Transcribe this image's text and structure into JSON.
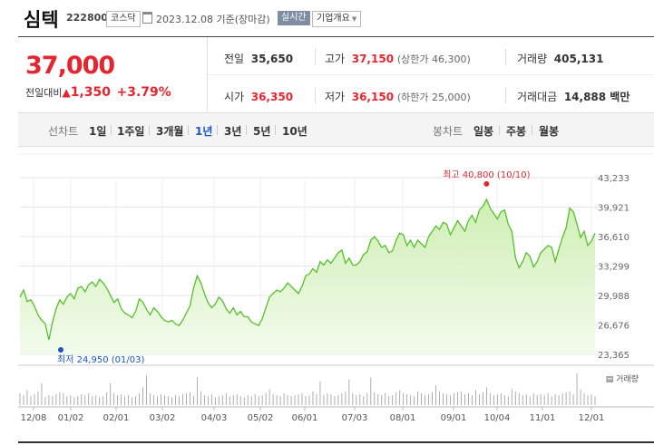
{
  "header": {
    "title": "심텍",
    "code": "222800",
    "market_badge": "코스닥",
    "date": "2023.12.08",
    "date_note": "기준(장마감)",
    "realtime_badge": "실시간",
    "company_dropdown": "기업개요"
  },
  "price": {
    "current": "37,000",
    "change_label": "전일대비",
    "change_arrow": "▲",
    "change_value": "1,350",
    "change_percent": "+3.79%"
  },
  "stats": {
    "prev_close": {
      "label": "전일",
      "value": "35,650"
    },
    "high": {
      "label": "고가",
      "value": "37,150",
      "limit": "(상한가 46,300)"
    },
    "volume": {
      "label": "거래량",
      "value": "405,131"
    },
    "open": {
      "label": "시가",
      "value": "36,350"
    },
    "low": {
      "label": "저가",
      "value": "36,150",
      "limit": "(하한가 25,000)"
    },
    "amount": {
      "label": "거래대금",
      "value": "14,888 백만"
    }
  },
  "line_tabs": {
    "label": "선차트",
    "items": [
      "1일",
      "1주일",
      "3개월",
      "1년",
      "3년",
      "5년",
      "10년"
    ],
    "active": "1년"
  },
  "candle_tabs": {
    "label": "봉차트",
    "items": [
      "일봉",
      "주봉",
      "월봉"
    ]
  },
  "colors": {
    "accent_red": "#e4262f",
    "low_blue": "#1a55c6",
    "line_green": "#55c02a",
    "area_fill": "#dcf3c6"
  },
  "chart_data": {
    "type": "area",
    "y_ticks": [
      "43,233",
      "39,921",
      "36,610",
      "33,299",
      "29,988",
      "26,676",
      "23,365"
    ],
    "ylim": [
      23365,
      43233
    ],
    "x_ticks": [
      "12/08",
      "01/02",
      "02/01",
      "03/02",
      "04/03",
      "05/02",
      "06/01",
      "07/03",
      "08/01",
      "09/01",
      "10/04",
      "11/01",
      "12/01"
    ],
    "high_annotation": "최고 40,800 (10/10)",
    "low_annotation": "최저 24,950 (01/03)",
    "volume_label": "거래량",
    "series": [
      {
        "values": [
          29800,
          30600,
          29300,
          29500,
          28800,
          27800,
          27200,
          26800,
          25000,
          27000,
          28500,
          29500,
          29000,
          29800,
          30200,
          29600,
          30800,
          31000,
          30400,
          31200,
          31500,
          31000,
          31800,
          31400,
          30800,
          30000,
          29200,
          29600,
          28500,
          28000,
          27800,
          27500,
          28200,
          29600,
          29200,
          28400,
          27800,
          28600,
          28200,
          27600,
          27200,
          27000,
          27200,
          26800,
          26600,
          27200,
          28000,
          28800,
          30800,
          32200,
          31400,
          30200,
          29200,
          28600,
          29000,
          29800,
          29400,
          28500,
          28000,
          28600,
          27800,
          28200,
          27600,
          27600,
          27000,
          26800,
          26600,
          27400,
          28600,
          29800,
          30200,
          30600,
          30400,
          30800,
          31400,
          31000,
          30600,
          30200,
          31000,
          32200,
          32400,
          33000,
          32600,
          33800,
          33400,
          34000,
          33600,
          34200,
          34800,
          35100,
          33600,
          34200,
          33400,
          33400,
          33800,
          34600,
          34900,
          36200,
          36600,
          36100,
          35400,
          35600,
          34800,
          35000,
          36200,
          37000,
          36800,
          35600,
          36200,
          35400,
          36200,
          35800,
          35400,
          36600,
          37200,
          37800,
          37400,
          38200,
          38000,
          36800,
          37600,
          38400,
          37800,
          37200,
          38400,
          39000,
          38200,
          39600,
          40000,
          40800,
          39800,
          39200,
          38600,
          39400,
          39600,
          38000,
          37200,
          34200,
          33100,
          33800,
          34800,
          34400,
          33200,
          33800,
          34800,
          35200,
          35600,
          35400,
          33800,
          35200,
          36500,
          37600,
          39800,
          39400,
          38000,
          36500,
          37200,
          35600,
          36100,
          37000
        ]
      }
    ],
    "volume_values": [
      12,
      10,
      15,
      9,
      11,
      14,
      22,
      8,
      10,
      9,
      11,
      13,
      12,
      9,
      10,
      8,
      9,
      11,
      10,
      12,
      9,
      10,
      8,
      9,
      13,
      22,
      12,
      10,
      11,
      9,
      10,
      8,
      9,
      12,
      18,
      30,
      12,
      10,
      9,
      11,
      10,
      9,
      8,
      10,
      9,
      11,
      12,
      13,
      9,
      28,
      14,
      10,
      9,
      11,
      8,
      9,
      10,
      12,
      9,
      10,
      11,
      9,
      8,
      10,
      9,
      11,
      9,
      10,
      12,
      16,
      11,
      10,
      9,
      12,
      10,
      9,
      10,
      11,
      12,
      9,
      10,
      14,
      11,
      24,
      10,
      12,
      11,
      9,
      10,
      12,
      14,
      26,
      12,
      10,
      11,
      9,
      12,
      28,
      13,
      11,
      10,
      12,
      9,
      10,
      13,
      15,
      12,
      11,
      10,
      9,
      14,
      12,
      10,
      11,
      13,
      20,
      14,
      12,
      11,
      10,
      12,
      13,
      14,
      11,
      12,
      10,
      15,
      11,
      13,
      18,
      12,
      10,
      11,
      12,
      10,
      9,
      16,
      14,
      12,
      10,
      11,
      9,
      12,
      10,
      11,
      10,
      12,
      9,
      11,
      10,
      12,
      13,
      14,
      11,
      32,
      16,
      12,
      10,
      11,
      9
    ]
  }
}
